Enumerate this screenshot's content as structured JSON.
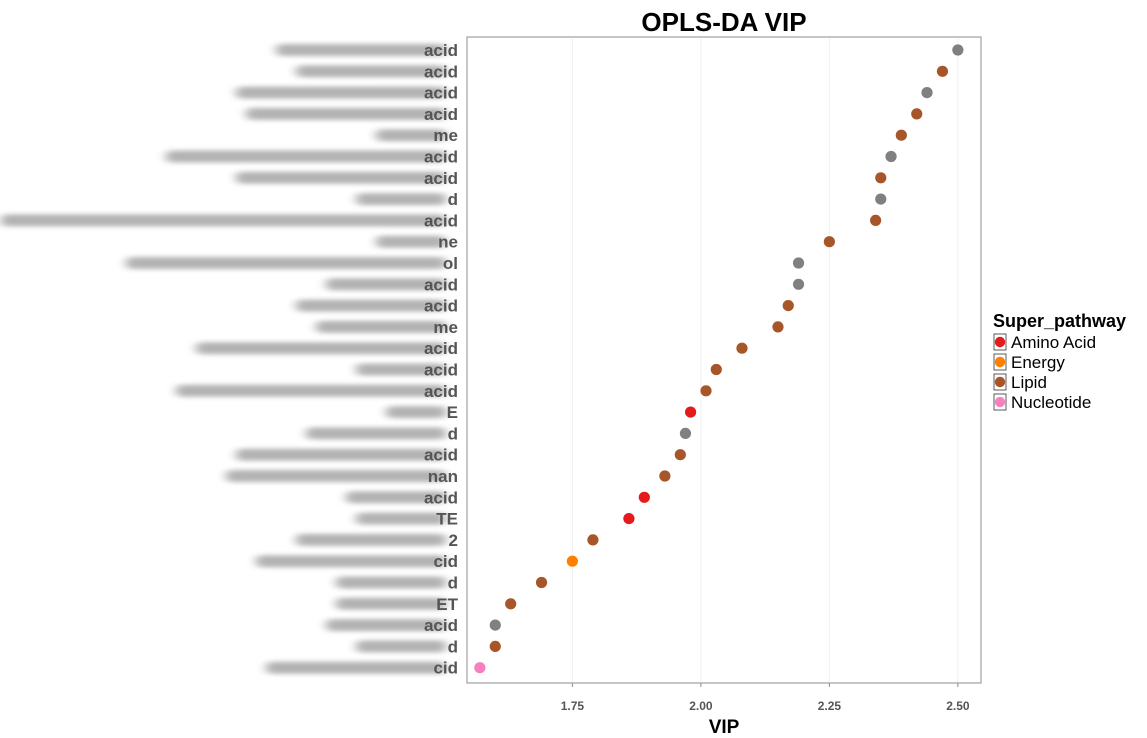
{
  "chart_data": {
    "type": "scatter",
    "title": "OPLS-DA VIP",
    "xlabel": "VIP",
    "ylabel": "",
    "xlim": [
      1.545,
      2.545
    ],
    "x_ticks": [
      "1.75",
      "2.00",
      "2.25",
      "2.50"
    ],
    "x_tick_values": [
      1.75,
      2.0,
      2.25,
      2.5
    ],
    "grid": "vertical major lines, light",
    "legend": {
      "title": "Super_pathway",
      "placement": "right",
      "entries": [
        {
          "name": "Amino Acid",
          "color": "#e41a1c"
        },
        {
          "name": "Energy",
          "color": "#ff7f00"
        },
        {
          "name": "Lipid",
          "color": "#a65628"
        },
        {
          "name": "Nucleotide",
          "color": "#f781bf"
        }
      ],
      "unlisted_color": "#808080"
    },
    "categories": [
      "acid",
      "acid",
      "acid",
      "acid",
      "me",
      "acid",
      "acid",
      "d",
      "acid",
      "ne",
      "ol",
      "acid",
      "acid",
      "me",
      "acid",
      "acid",
      "acid",
      "E",
      "d",
      "acid",
      "nan",
      "acid",
      "TE",
      "2",
      "cid",
      "d",
      "ET",
      "acid",
      "d",
      "cid"
    ],
    "points": [
      {
        "x": 2.5,
        "pathway": "Other"
      },
      {
        "x": 2.47,
        "pathway": "Lipid"
      },
      {
        "x": 2.44,
        "pathway": "Other"
      },
      {
        "x": 2.42,
        "pathway": "Lipid"
      },
      {
        "x": 2.39,
        "pathway": "Lipid"
      },
      {
        "x": 2.37,
        "pathway": "Other"
      },
      {
        "x": 2.35,
        "pathway": "Lipid"
      },
      {
        "x": 2.35,
        "pathway": "Other"
      },
      {
        "x": 2.34,
        "pathway": "Lipid"
      },
      {
        "x": 2.25,
        "pathway": "Lipid"
      },
      {
        "x": 2.19,
        "pathway": "Other"
      },
      {
        "x": 2.19,
        "pathway": "Other"
      },
      {
        "x": 2.17,
        "pathway": "Lipid"
      },
      {
        "x": 2.15,
        "pathway": "Lipid"
      },
      {
        "x": 2.08,
        "pathway": "Lipid"
      },
      {
        "x": 2.03,
        "pathway": "Lipid"
      },
      {
        "x": 2.01,
        "pathway": "Lipid"
      },
      {
        "x": 1.98,
        "pathway": "Amino Acid"
      },
      {
        "x": 1.97,
        "pathway": "Other"
      },
      {
        "x": 1.96,
        "pathway": "Lipid"
      },
      {
        "x": 1.93,
        "pathway": "Lipid"
      },
      {
        "x": 1.89,
        "pathway": "Amino Acid"
      },
      {
        "x": 1.86,
        "pathway": "Amino Acid"
      },
      {
        "x": 1.79,
        "pathway": "Lipid"
      },
      {
        "x": 1.75,
        "pathway": "Energy"
      },
      {
        "x": 1.69,
        "pathway": "Lipid"
      },
      {
        "x": 1.63,
        "pathway": "Lipid"
      },
      {
        "x": 1.6,
        "pathway": "Other"
      },
      {
        "x": 1.6,
        "pathway": "Lipid"
      },
      {
        "x": 1.57,
        "pathway": "Nucleotide"
      }
    ]
  }
}
